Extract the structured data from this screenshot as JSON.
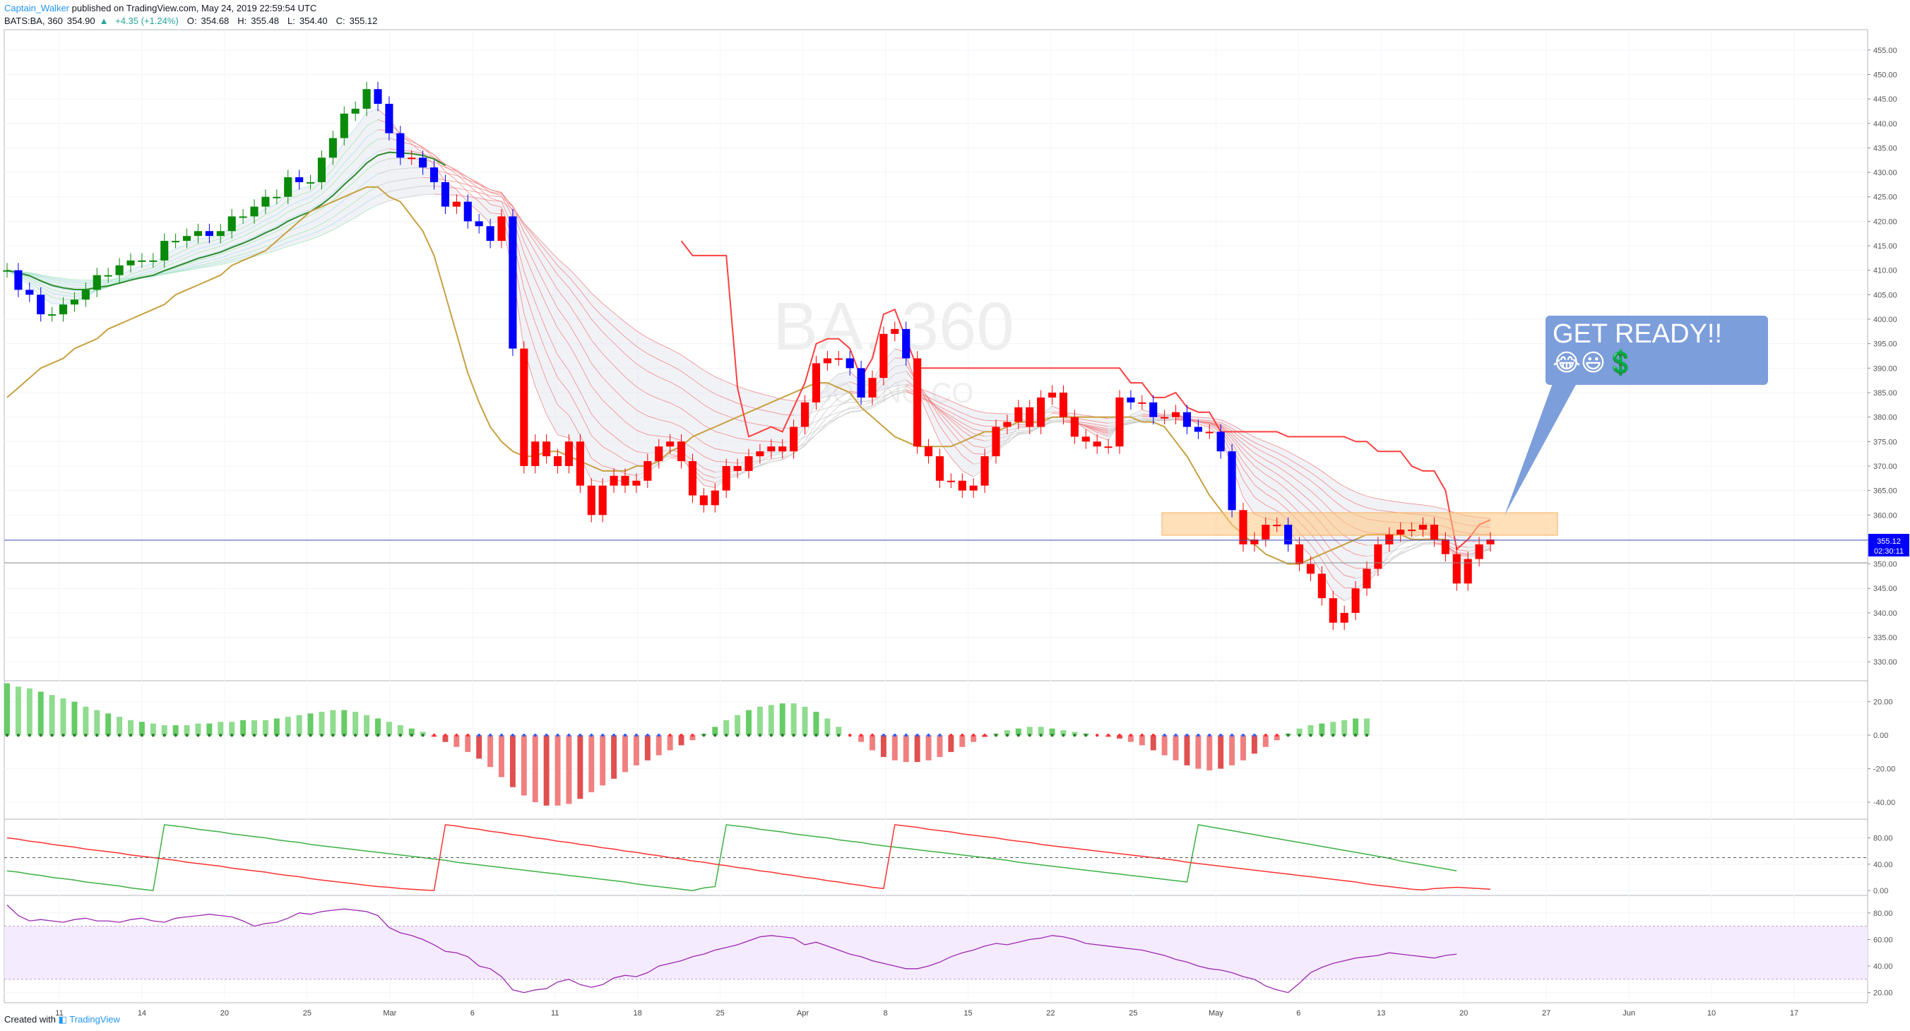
{
  "header": {
    "author": "Captain_Walker",
    "published_text": "published on TradingView.com, May 24, 2019 22:59:54 UTC",
    "symbol": "BATS:BA, 360",
    "last": "354.90",
    "arrow": "▲",
    "change": "+4.35 (+1.24%)",
    "open_label": "O:",
    "open": "354.68",
    "high_label": "H:",
    "high": "355.48",
    "low_label": "L:",
    "low": "354.40",
    "close_label": "C:",
    "close": "355.12"
  },
  "watermark": {
    "line1": "BA, 360",
    "line2": "BOEING CO"
  },
  "price_tag": {
    "value": "355.12",
    "timer": "02:30:11"
  },
  "callout": {
    "text": "GET READY!!",
    "emoji": "😂😃💲"
  },
  "footer": {
    "created": "Created with",
    "brand": "TradingView"
  },
  "colors": {
    "up": "#0a8a0a",
    "down_blue": "#0000ff",
    "down_red": "#ff0000",
    "gold": "#c8a040",
    "zone": "#ffc680",
    "rsi_band": "#f3e6ff"
  },
  "chart_data": [
    {
      "type": "candlestick",
      "title": "BATS:BA, 360",
      "ylim": [
        327,
        458
      ],
      "y_ticks": [
        "330.00",
        "335.00",
        "340.00",
        "345.00",
        "350.00",
        "355.00",
        "360.00",
        "365.00",
        "370.00",
        "375.00",
        "380.00",
        "385.00",
        "390.00",
        "395.00",
        "400.00",
        "405.00",
        "410.00",
        "415.00",
        "420.00",
        "425.00",
        "430.00",
        "435.00",
        "440.00",
        "445.00",
        "450.00",
        "455.00"
      ],
      "x_labels": [
        "11",
        "14",
        "20",
        "25",
        "Mar",
        "6",
        "11",
        "18",
        "25",
        "Apr",
        "8",
        "15",
        "22",
        "25",
        "May",
        "6",
        "13",
        "20",
        "27",
        "Jun",
        "10",
        "17"
      ],
      "series": [
        {
          "name": "price",
          "close": [
            410,
            406,
            405,
            401,
            401,
            403,
            404,
            406,
            409,
            409,
            411,
            412,
            412,
            412,
            416,
            416,
            417,
            418,
            417,
            418,
            421,
            421,
            423,
            425,
            425,
            429,
            428,
            428,
            433,
            437,
            442,
            443,
            447,
            444,
            438,
            433,
            433,
            431,
            428,
            423,
            424,
            420,
            419,
            416,
            421,
            394,
            370,
            375,
            372,
            370,
            375,
            366,
            360,
            366,
            368,
            366,
            367,
            371,
            374,
            375,
            371,
            364,
            362,
            365,
            370,
            369,
            372,
            373,
            374,
            373,
            378,
            383,
            391,
            392,
            392,
            390,
            384,
            388,
            397,
            398,
            392,
            374,
            372,
            367,
            367,
            365,
            366,
            372,
            378,
            379,
            382,
            378,
            384,
            385,
            380,
            376,
            375,
            374,
            374,
            384,
            383,
            383,
            380,
            380,
            381,
            378,
            377,
            377,
            373,
            361,
            354,
            355,
            358,
            358,
            354,
            350,
            348,
            343,
            338,
            340,
            345,
            349,
            354,
            356,
            357,
            357,
            358,
            355,
            352,
            346,
            351,
            354,
            355
          ]
        },
        {
          "name": "fast_line",
          "values": [
            384,
            386,
            388,
            390,
            391,
            392,
            394,
            395,
            396,
            398,
            399,
            400,
            401,
            402,
            403,
            405,
            406,
            407,
            408,
            409,
            411,
            412,
            413,
            414,
            416,
            418,
            420,
            422,
            423,
            424,
            425,
            426,
            427,
            427,
            425,
            424,
            421,
            418,
            413,
            405,
            397,
            389,
            383,
            378,
            375,
            373,
            372,
            372,
            373,
            373,
            372,
            371,
            370,
            369,
            369,
            369,
            370,
            370,
            371,
            373,
            374,
            376,
            377,
            378,
            379,
            380,
            381,
            382,
            383,
            384,
            385,
            386,
            387,
            387,
            386,
            385,
            382,
            380,
            378,
            376,
            375,
            374,
            374,
            374,
            374,
            375,
            376,
            377,
            377,
            378,
            379,
            379,
            379,
            380,
            380,
            380,
            380,
            380,
            380,
            380,
            380,
            379,
            379,
            378,
            375,
            372,
            368,
            364,
            361,
            358,
            356,
            354,
            352,
            351,
            350,
            350,
            351,
            352,
            353,
            354,
            355,
            356,
            356,
            356,
            356,
            355,
            355,
            355,
            355
          ]
        }
      ]
    },
    {
      "type": "bar",
      "title": "",
      "ylim": [
        -48,
        30
      ],
      "y_ticks": [
        "20.00",
        "0.00",
        "-20.00",
        "-40.00"
      ],
      "series": [
        {
          "name": "momentum",
          "values": [
            31,
            29,
            28,
            26,
            24,
            22,
            20,
            17,
            15,
            13,
            11,
            9,
            8,
            7,
            6,
            6,
            6,
            7,
            7,
            8,
            8,
            9,
            9,
            9,
            10,
            11,
            12,
            13,
            14,
            15,
            15,
            14,
            12,
            10,
            8,
            6,
            4,
            2,
            -1,
            -4,
            -7,
            -10,
            -14,
            -19,
            -25,
            -31,
            -36,
            -40,
            -42,
            -42,
            -41,
            -38,
            -34,
            -30,
            -26,
            -22,
            -18,
            -15,
            -12,
            -9,
            -6,
            -3,
            1,
            5,
            9,
            12,
            15,
            17,
            18,
            19,
            19,
            17,
            14,
            10,
            5,
            0,
            -4,
            -9,
            -13,
            -15,
            -16,
            -16,
            -15,
            -13,
            -10,
            -7,
            -4,
            -1,
            1,
            3,
            4,
            5,
            5,
            4,
            3,
            2,
            1,
            0,
            -1,
            -2,
            -4,
            -6,
            -9,
            -12,
            -15,
            -18,
            -20,
            -21,
            -20,
            -18,
            -15,
            -11,
            -7,
            -3,
            1,
            4,
            6,
            7,
            8,
            9,
            10,
            10
          ]
        }
      ]
    },
    {
      "type": "line",
      "title": "",
      "ylim": [
        -2,
        102
      ],
      "y_ticks": [
        "80.00",
        "40.00",
        "0.00"
      ],
      "series": [
        {
          "name": "up_line",
          "values": [
            30,
            28,
            25,
            23,
            20,
            18,
            16,
            13,
            11,
            9,
            7,
            4,
            2,
            0,
            100,
            98,
            96,
            93,
            91,
            89,
            86,
            84,
            82,
            80,
            77,
            75,
            73,
            70,
            68,
            66,
            64,
            62,
            60,
            58,
            56,
            54,
            52,
            50,
            48,
            46,
            43,
            41,
            39,
            37,
            35,
            33,
            31,
            29,
            27,
            25,
            23,
            21,
            19,
            17,
            15,
            13,
            10,
            8,
            6,
            4,
            2,
            0,
            4,
            6,
            100,
            98,
            96,
            93,
            91,
            89,
            86,
            84,
            82,
            80,
            77,
            75,
            73,
            70,
            68,
            66,
            64,
            62,
            60,
            58,
            56,
            54,
            52,
            50,
            48,
            46,
            43,
            41,
            39,
            37,
            35,
            33,
            31,
            29,
            27,
            25,
            23,
            21,
            19,
            17,
            15,
            13,
            100,
            97,
            94,
            91,
            88,
            85,
            82,
            79,
            76,
            73,
            70,
            67,
            64,
            61,
            58,
            55,
            52,
            49,
            45,
            42,
            39,
            36,
            33,
            30
          ]
        },
        {
          "name": "down_line",
          "values": [
            80,
            78,
            75,
            73,
            70,
            68,
            66,
            63,
            61,
            59,
            57,
            54,
            52,
            50,
            48,
            46,
            43,
            41,
            39,
            37,
            34,
            32,
            30,
            28,
            25,
            23,
            21,
            18,
            16,
            14,
            12,
            10,
            8,
            6,
            5,
            3,
            2,
            1,
            0,
            100,
            98,
            95,
            93,
            90,
            88,
            85,
            83,
            80,
            78,
            75,
            73,
            70,
            68,
            65,
            63,
            60,
            58,
            55,
            53,
            50,
            48,
            45,
            43,
            40,
            38,
            35,
            33,
            30,
            28,
            25,
            23,
            20,
            18,
            15,
            13,
            10,
            8,
            5,
            3,
            100,
            98,
            96,
            93,
            91,
            89,
            86,
            84,
            82,
            80,
            77,
            75,
            73,
            70,
            68,
            66,
            64,
            62,
            60,
            58,
            56,
            54,
            52,
            50,
            48,
            46,
            43,
            41,
            39,
            37,
            35,
            33,
            31,
            29,
            27,
            25,
            23,
            21,
            19,
            17,
            15,
            13,
            10,
            8,
            6,
            4,
            2,
            1,
            3,
            4,
            5,
            4,
            3,
            2
          ]
        }
      ]
    },
    {
      "type": "line",
      "title": "",
      "ylim": [
        15,
        90
      ],
      "y_ticks": [
        "80.00",
        "60.00",
        "40.00",
        "20.00"
      ],
      "series": [
        {
          "name": "rsi",
          "values": [
            86,
            78,
            74,
            75,
            74,
            73,
            75,
            76,
            74,
            74,
            73,
            75,
            76,
            74,
            73,
            76,
            77,
            78,
            79,
            78,
            77,
            74,
            70,
            72,
            73,
            76,
            80,
            79,
            81,
            82,
            83,
            82,
            81,
            78,
            69,
            65,
            63,
            60,
            56,
            51,
            50,
            47,
            40,
            38,
            32,
            22,
            20,
            22,
            23,
            28,
            30,
            26,
            24,
            26,
            31,
            33,
            32,
            35,
            40,
            42,
            44,
            47,
            49,
            52,
            54,
            56,
            59,
            62,
            63,
            62,
            61,
            56,
            58,
            55,
            52,
            49,
            47,
            44,
            42,
            40,
            38,
            38,
            40,
            43,
            47,
            50,
            52,
            55,
            57,
            56,
            58,
            60,
            61,
            63,
            62,
            60,
            57,
            56,
            55,
            54,
            53,
            52,
            50,
            48,
            45,
            43,
            40,
            38,
            37,
            35,
            32,
            30,
            25,
            22,
            20,
            27,
            35,
            39,
            42,
            44,
            46,
            47,
            48,
            50,
            49,
            48,
            47,
            46,
            48,
            49
          ]
        }
      ]
    }
  ]
}
